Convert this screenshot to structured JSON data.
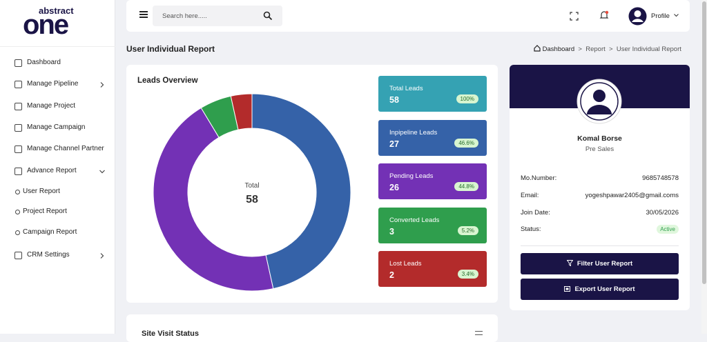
{
  "logo": {
    "top": "abstract",
    "bottom": "one"
  },
  "sidebar": {
    "items": [
      {
        "label": "Dashboard"
      },
      {
        "label": "Manage Pipeline"
      },
      {
        "label": "Manage Project"
      },
      {
        "label": "Manage Campaign"
      },
      {
        "label": "Manage Channel Partner"
      },
      {
        "label": "Advance Report"
      },
      {
        "label": "User Report"
      },
      {
        "label": "Project Report"
      },
      {
        "label": "Campaign Report"
      },
      {
        "label": "CRM Settings"
      }
    ]
  },
  "header": {
    "search_placeholder": "Search here.....",
    "profile": "Profile"
  },
  "page": {
    "title": "User Individual Report",
    "breadcrumb": [
      "Dashboard",
      "Report",
      "User Individual Report"
    ],
    "separator": ">"
  },
  "leads": {
    "title": "Leads Overview",
    "center_label": "Total",
    "cards": [
      {
        "label": "Total Leads",
        "value": 58,
        "percent": "100%",
        "color": "#35a2b3"
      },
      {
        "label": "Inpipeline Leads",
        "value": 27,
        "percent": "46.6%",
        "color": "#3562a8"
      },
      {
        "label": "Pending Leads",
        "value": 26,
        "percent": "44.8%",
        "color": "#7331b5"
      },
      {
        "label": "Converted Leads",
        "value": 3,
        "percent": "5.2%",
        "color": "#2f9e4d"
      },
      {
        "label": "Lost Leads",
        "value": 2,
        "percent": "3.4%",
        "color": "#b32b2b"
      }
    ]
  },
  "profile": {
    "name": "Komal Borse",
    "role": "Pre Sales",
    "fields": [
      {
        "label": "Mo.Number:",
        "value": "9685748578"
      },
      {
        "label": "Email:",
        "value": "yogeshpawar2405@gmail.coms"
      },
      {
        "label": "Join Date:",
        "value": "30/05/2026"
      },
      {
        "label": "Status:",
        "value": "Active"
      }
    ],
    "buttons": [
      "Filter User Report",
      "Export User Report"
    ]
  },
  "site_visit": {
    "title": "Site Visit Status"
  }
}
